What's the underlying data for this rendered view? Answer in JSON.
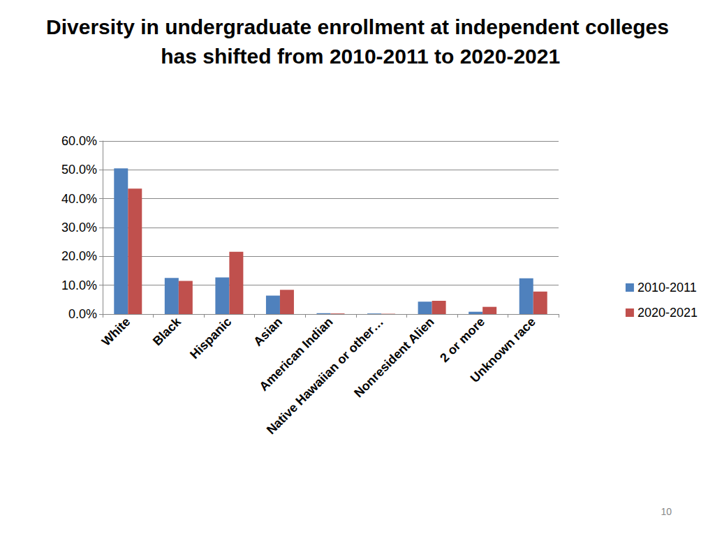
{
  "chart_data": {
    "type": "bar",
    "title": "Diversity in undergraduate enrollment at independent colleges has shifted from 2010-2011 to 2020-2021",
    "categories": [
      "White",
      "Black",
      "Hispanic",
      "Asian",
      "American Indian",
      "Native Hawaiian or other…",
      "Nonresident Alien",
      "2 or more",
      "Unknown race"
    ],
    "series": [
      {
        "name": "2010-2011",
        "color": "#4f81bd",
        "values": [
          50.5,
          12.5,
          12.7,
          6.4,
          0.3,
          0.2,
          4.3,
          0.8,
          12.4
        ]
      },
      {
        "name": "2020-2021",
        "color": "#c0504d",
        "values": [
          43.5,
          11.5,
          21.6,
          8.4,
          0.2,
          0.1,
          4.6,
          2.5,
          7.8
        ]
      }
    ],
    "ylim": [
      0,
      60
    ],
    "yticks": [
      {
        "value": 0,
        "label": "0.0%"
      },
      {
        "value": 10,
        "label": "10.0%"
      },
      {
        "value": 20,
        "label": "20.0%"
      },
      {
        "value": 30,
        "label": "30.0%"
      },
      {
        "value": 40,
        "label": "40.0%"
      },
      {
        "value": 50,
        "label": "50.0%"
      },
      {
        "value": 60,
        "label": "60.0%"
      }
    ],
    "grid": true,
    "legend": "right",
    "annotations": [
      "10"
    ]
  }
}
